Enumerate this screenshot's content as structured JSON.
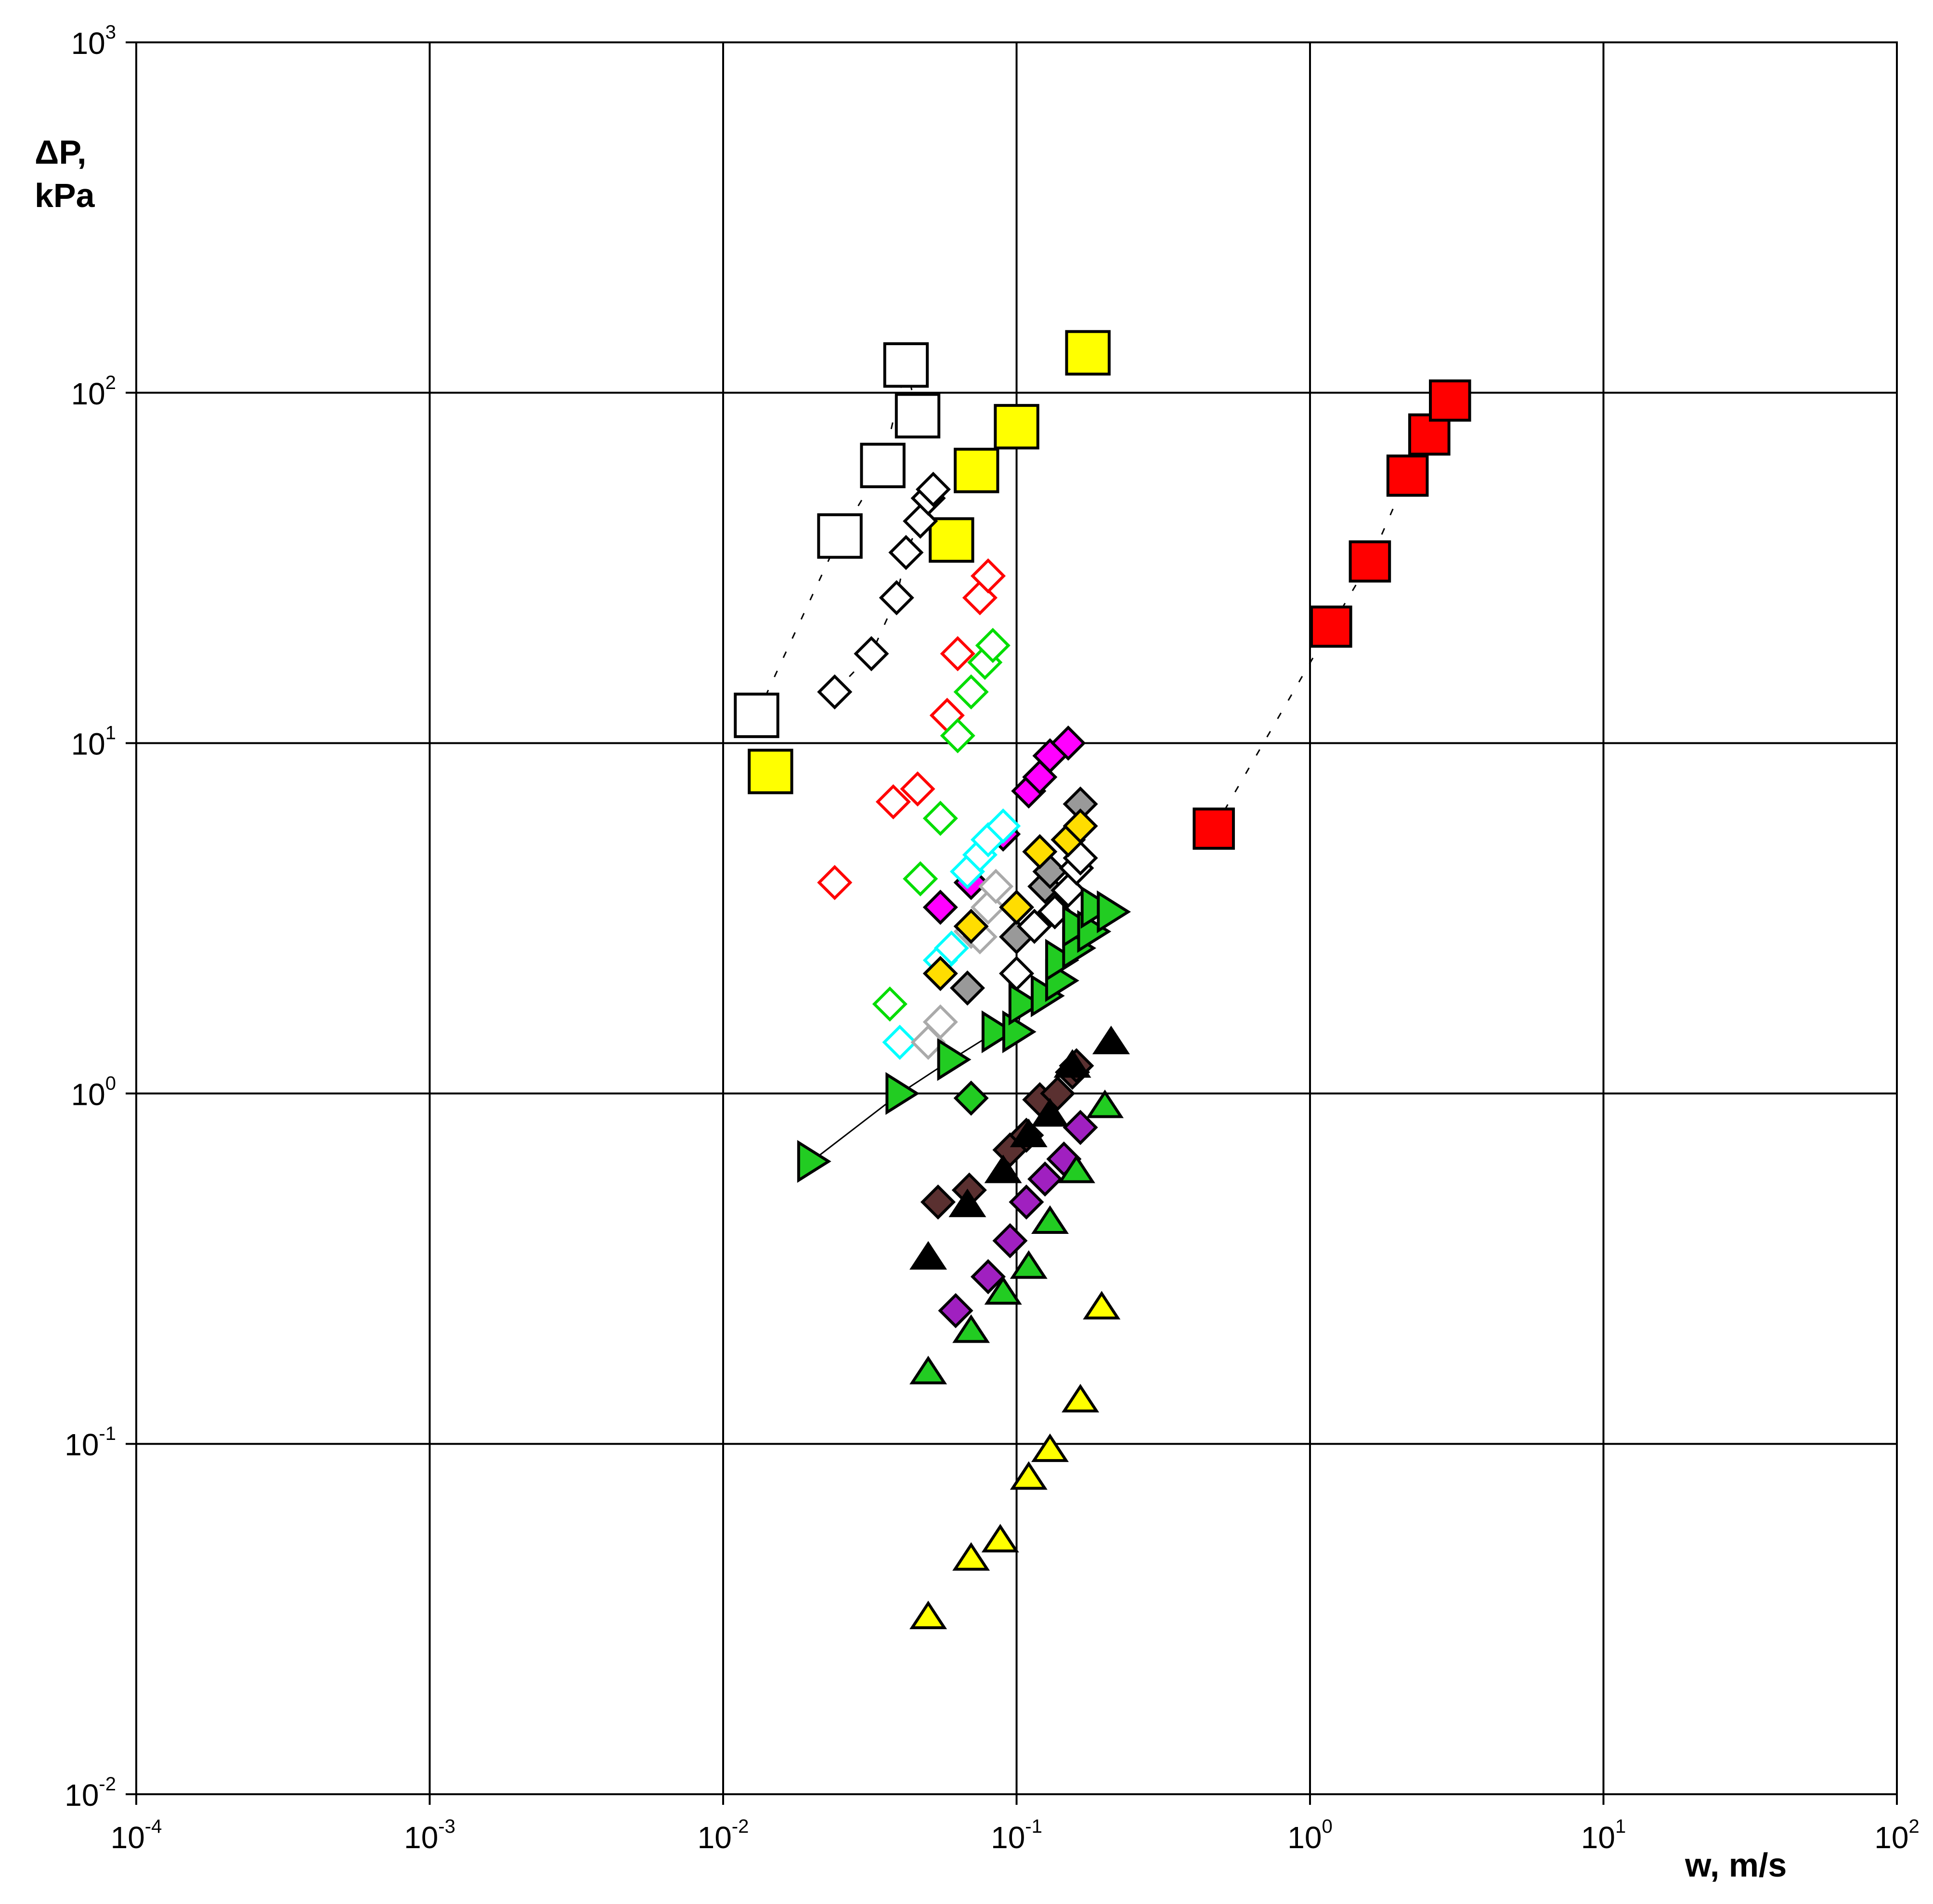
{
  "chart_data": {
    "type": "scatter",
    "title": "",
    "xlabel": "w, m/s",
    "ylabel_line1": "ΔP,",
    "ylabel_line2": "kPa",
    "xscale": "log",
    "yscale": "log",
    "xlim": [
      0.0001,
      100
    ],
    "ylim": [
      0.01,
      1000
    ],
    "grid": true,
    "legend": "none",
    "x_ticks": [
      {
        "value": 0.0001,
        "base": "10",
        "exp": "-4"
      },
      {
        "value": 0.001,
        "base": "10",
        "exp": "-3"
      },
      {
        "value": 0.01,
        "base": "10",
        "exp": "-2"
      },
      {
        "value": 0.1,
        "base": "10",
        "exp": "-1"
      },
      {
        "value": 1,
        "base": "10",
        "exp": "0"
      },
      {
        "value": 10,
        "base": "10",
        "exp": "1"
      },
      {
        "value": 100,
        "base": "10",
        "exp": "2"
      }
    ],
    "y_ticks": [
      {
        "value": 0.01,
        "base": "10",
        "exp": "-2"
      },
      {
        "value": 0.1,
        "base": "10",
        "exp": "-1"
      },
      {
        "value": 1,
        "base": "10",
        "exp": "0"
      },
      {
        "value": 10,
        "base": "10",
        "exp": "1"
      },
      {
        "value": 100,
        "base": "10",
        "exp": "2"
      },
      {
        "value": 1000,
        "base": "10",
        "exp": "3"
      }
    ],
    "series": [
      {
        "marker": "square",
        "fill": "#ffffff",
        "stroke": "#000000",
        "size": 1.3,
        "line": "dashed",
        "points": [
          [
            0.013,
            12
          ],
          [
            0.025,
            39
          ],
          [
            0.035,
            62
          ],
          [
            0.042,
            120
          ],
          [
            0.046,
            86
          ]
        ]
      },
      {
        "marker": "square",
        "fill": "#ffff00",
        "stroke": "#000000",
        "size": 1.3,
        "line": "none",
        "points": [
          [
            0.0145,
            8.3
          ],
          [
            0.06,
            38
          ],
          [
            0.073,
            60
          ],
          [
            0.1,
            80
          ],
          [
            0.175,
            130
          ]
        ]
      },
      {
        "marker": "square",
        "fill": "#ff0000",
        "stroke": "#000000",
        "size": 1.2,
        "line": "dashed",
        "points": [
          [
            0.47,
            5.7
          ],
          [
            1.18,
            21.5
          ],
          [
            1.6,
            33
          ],
          [
            2.15,
            58
          ],
          [
            2.55,
            76
          ],
          [
            3.0,
            95
          ]
        ]
      },
      {
        "marker": "diamond",
        "fill": "#ffffff",
        "stroke": "#000000",
        "size": 1.0,
        "line": "dashed",
        "points": [
          [
            0.024,
            14
          ],
          [
            0.032,
            18
          ],
          [
            0.039,
            26
          ],
          [
            0.042,
            35
          ],
          [
            0.047,
            43
          ],
          [
            0.05,
            50
          ],
          [
            0.052,
            53
          ]
        ]
      },
      {
        "marker": "diamond",
        "fill": "#ffffff",
        "stroke": "#ff0000",
        "size": 1.0,
        "line": "none",
        "points": [
          [
            0.024,
            4.0
          ],
          [
            0.038,
            6.8
          ],
          [
            0.046,
            7.4
          ],
          [
            0.058,
            12
          ],
          [
            0.063,
            18
          ],
          [
            0.075,
            26
          ],
          [
            0.08,
            30
          ]
        ]
      },
      {
        "marker": "diamond",
        "fill": "#ffffff",
        "stroke": "#00dd00",
        "size": 1.0,
        "line": "none",
        "points": [
          [
            0.037,
            1.8
          ],
          [
            0.047,
            4.1
          ],
          [
            0.055,
            6.1
          ],
          [
            0.063,
            10.5
          ],
          [
            0.07,
            14
          ],
          [
            0.078,
            17
          ],
          [
            0.083,
            19
          ]
        ]
      },
      {
        "marker": "diamond",
        "fill": "#ff00ff",
        "stroke": "#000000",
        "size": 1.0,
        "line": "none",
        "points": [
          [
            0.055,
            3.4
          ],
          [
            0.07,
            4.0
          ],
          [
            0.09,
            5.5
          ],
          [
            0.11,
            7.3
          ],
          [
            0.12,
            8.0
          ],
          [
            0.13,
            9.2
          ],
          [
            0.15,
            10
          ]
        ]
      },
      {
        "marker": "diamond",
        "fill": "#ffffff",
        "stroke": "#00ffff",
        "size": 1.0,
        "line": "none",
        "points": [
          [
            0.04,
            1.4
          ],
          [
            0.055,
            2.4
          ],
          [
            0.06,
            2.6
          ],
          [
            0.068,
            4.3
          ],
          [
            0.075,
            4.8
          ],
          [
            0.08,
            5.3
          ],
          [
            0.09,
            5.8
          ]
        ]
      },
      {
        "marker": "diamond",
        "fill": "#ffffff",
        "stroke": "#aaaaaa",
        "size": 1.0,
        "line": "none",
        "points": [
          [
            0.05,
            1.4
          ],
          [
            0.055,
            1.6
          ],
          [
            0.07,
            2.9
          ],
          [
            0.075,
            2.8
          ],
          [
            0.08,
            3.4
          ],
          [
            0.085,
            3.9
          ]
        ]
      },
      {
        "marker": "diamond",
        "fill": "#999999",
        "stroke": "#000000",
        "size": 1.0,
        "line": "none",
        "points": [
          [
            0.068,
            2.0
          ],
          [
            0.1,
            2.8
          ],
          [
            0.125,
            3.9
          ],
          [
            0.13,
            4.3
          ],
          [
            0.165,
            6.7
          ]
        ]
      },
      {
        "marker": "diamond",
        "fill": "#ffffff",
        "stroke": "#000000",
        "size": 1.0,
        "line": "none",
        "points": [
          [
            0.1,
            2.2
          ],
          [
            0.115,
            3.0
          ],
          [
            0.135,
            3.3
          ],
          [
            0.15,
            3.8
          ],
          [
            0.16,
            4.4
          ],
          [
            0.165,
            4.7
          ]
        ]
      },
      {
        "marker": "diamond",
        "fill": "#ffdd00",
        "stroke": "#000000",
        "size": 1.0,
        "line": "none",
        "points": [
          [
            0.055,
            2.2
          ],
          [
            0.07,
            3.0
          ],
          [
            0.1,
            3.4
          ],
          [
            0.12,
            4.9
          ],
          [
            0.15,
            5.3
          ],
          [
            0.165,
            5.8
          ]
        ]
      },
      {
        "marker": "triangle-right",
        "fill": "#22cc22",
        "stroke": "#000000",
        "size": 1.1,
        "line": "solid",
        "points": [
          [
            0.02,
            0.64
          ],
          [
            0.04,
            1.0
          ],
          [
            0.06,
            1.25
          ],
          [
            0.085,
            1.5
          ],
          [
            0.1,
            1.5
          ],
          [
            0.105,
            1.8
          ],
          [
            0.125,
            1.9
          ],
          [
            0.14,
            2.1
          ],
          [
            0.14,
            2.4
          ],
          [
            0.16,
            2.6
          ],
          [
            0.16,
            3.0
          ],
          [
            0.18,
            2.9
          ],
          [
            0.185,
            3.4
          ],
          [
            0.21,
            3.3
          ]
        ]
      },
      {
        "marker": "diamond",
        "fill": "#22cc22",
        "stroke": "#000000",
        "size": 1.0,
        "line": "none",
        "points": [
          [
            0.07,
            0.97
          ]
        ]
      },
      {
        "marker": "diamond",
        "fill": "#5a3030",
        "stroke": "#000000",
        "size": 1.0,
        "line": "none",
        "points": [
          [
            0.054,
            0.49
          ],
          [
            0.069,
            0.53
          ],
          [
            0.095,
            0.69
          ],
          [
            0.108,
            0.76
          ],
          [
            0.12,
            0.96
          ],
          [
            0.138,
            1.0
          ],
          [
            0.155,
            1.15
          ],
          [
            0.16,
            1.2
          ]
        ]
      },
      {
        "marker": "triangle-up",
        "fill": "#000000",
        "stroke": "#000000",
        "size": 0.9,
        "line": "none",
        "points": [
          [
            0.05,
            0.34
          ],
          [
            0.068,
            0.48
          ],
          [
            0.09,
            0.6
          ],
          [
            0.11,
            0.76
          ],
          [
            0.13,
            0.87
          ],
          [
            0.155,
            1.2
          ],
          [
            0.21,
            1.4
          ]
        ]
      },
      {
        "marker": "diamond",
        "fill": "#a020c0",
        "stroke": "#000000",
        "size": 1.0,
        "line": "none",
        "points": [
          [
            0.062,
            0.24
          ],
          [
            0.08,
            0.3
          ],
          [
            0.095,
            0.38
          ],
          [
            0.108,
            0.49
          ],
          [
            0.125,
            0.57
          ],
          [
            0.145,
            0.65
          ],
          [
            0.165,
            0.8
          ]
        ]
      },
      {
        "marker": "triangle-up",
        "fill": "#22cc22",
        "stroke": "#000000",
        "size": 0.9,
        "line": "none",
        "points": [
          [
            0.05,
            0.16
          ],
          [
            0.07,
            0.21
          ],
          [
            0.09,
            0.27
          ],
          [
            0.11,
            0.32
          ],
          [
            0.13,
            0.43
          ],
          [
            0.16,
            0.6
          ],
          [
            0.2,
            0.92
          ]
        ]
      },
      {
        "marker": "triangle-up",
        "fill": "#ffff00",
        "stroke": "#000000",
        "size": 0.9,
        "line": "none",
        "points": [
          [
            0.05,
            0.032
          ],
          [
            0.07,
            0.047
          ],
          [
            0.088,
            0.053
          ],
          [
            0.11,
            0.08
          ],
          [
            0.13,
            0.096
          ],
          [
            0.165,
            0.133
          ],
          [
            0.195,
            0.245
          ]
        ]
      }
    ]
  }
}
